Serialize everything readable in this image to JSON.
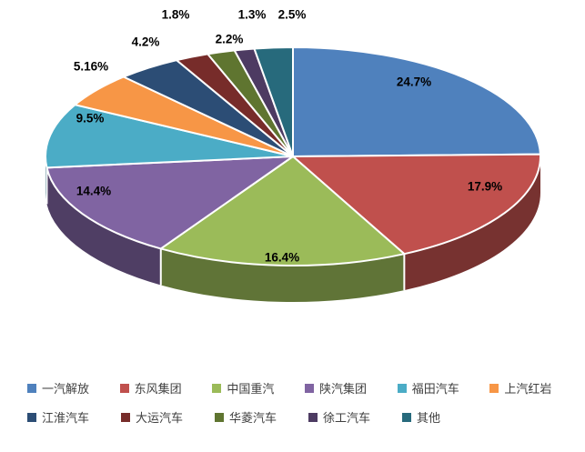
{
  "chart_data": {
    "type": "pie",
    "style": "3d-pie",
    "title": "",
    "start_angle": 0,
    "direction": "clockwise",
    "legend_position": "bottom",
    "slices": [
      {
        "label": "一汽解放",
        "value": 24.7,
        "display": "24.7%",
        "color": "#4F81BD"
      },
      {
        "label": "东风集团",
        "value": 17.9,
        "display": "17.9%",
        "color": "#C0504D"
      },
      {
        "label": "中国重汽",
        "value": 16.4,
        "display": "16.4%",
        "color": "#9BBB59"
      },
      {
        "label": "陕汽集团",
        "value": 14.4,
        "display": "14.4%",
        "color": "#8064A2"
      },
      {
        "label": "福田汽车",
        "value": 9.5,
        "display": "9.5%",
        "color": "#4BACC6"
      },
      {
        "label": "上汽红岩",
        "value": 5.16,
        "display": "5.16%",
        "color": "#F79646"
      },
      {
        "label": "江淮汽车",
        "value": 4.2,
        "display": "4.2%",
        "color": "#2C4D75"
      },
      {
        "label": "大运汽车",
        "value": 2.2,
        "display": "2.2%",
        "color": "#772C2A"
      },
      {
        "label": "华菱汽车",
        "value": 1.8,
        "display": "1.8%",
        "color": "#5F7530"
      },
      {
        "label": "徐工汽车",
        "value": 1.3,
        "display": "1.3%",
        "color": "#4D3B62"
      },
      {
        "label": "其他",
        "value": 2.5,
        "display": "2.5%",
        "color": "#276A7C"
      }
    ]
  }
}
